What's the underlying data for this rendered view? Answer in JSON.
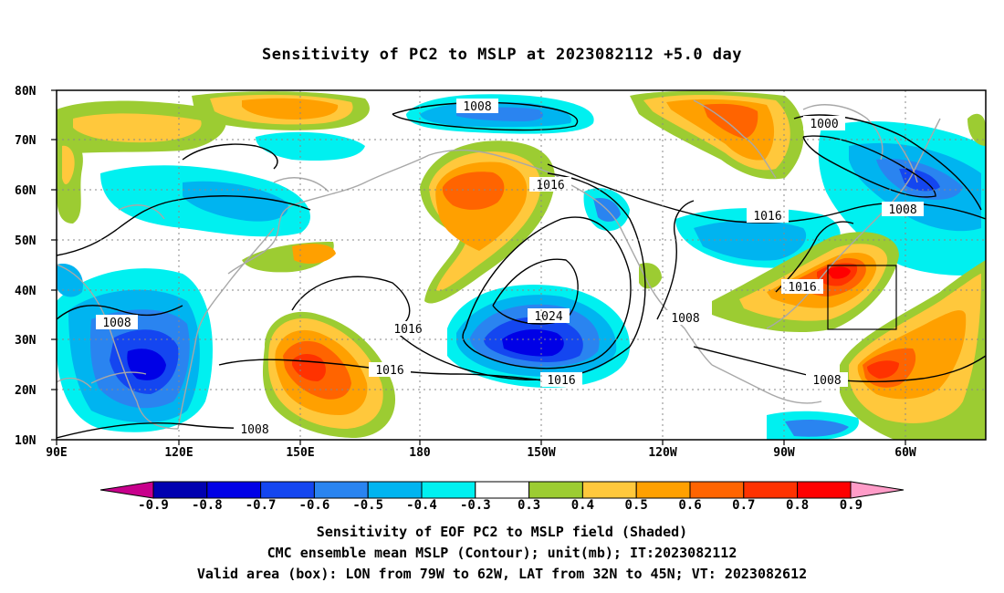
{
  "title": "Sensitivity of PC2 to MSLP at 2023082112 +5.0 day",
  "lat_labels": [
    "80N",
    "70N",
    "60N",
    "50N",
    "40N",
    "30N",
    "20N",
    "10N"
  ],
  "lon_labels": [
    "90E",
    "120E",
    "150E",
    "180",
    "150W",
    "120W",
    "90W",
    "60W"
  ],
  "contour_labels": [
    {
      "text": "1008",
      "where": "north-pacific-low"
    },
    {
      "text": "1000",
      "where": "hudson-bay-low"
    },
    {
      "text": "1016",
      "where": "bering-ridge"
    },
    {
      "text": "1016",
      "where": "canada"
    },
    {
      "text": "1008",
      "where": "north-atlantic"
    },
    {
      "text": "1016",
      "where": "mid-atlantic-coast"
    },
    {
      "text": "1024",
      "where": "pacific-high-center"
    },
    {
      "text": "1016",
      "where": "west-pacific"
    },
    {
      "text": "1016",
      "where": "central-pacific"
    },
    {
      "text": "1016",
      "where": "pacific-high-south"
    },
    {
      "text": "1008",
      "where": "california"
    },
    {
      "text": "1008",
      "where": "china-coast"
    },
    {
      "text": "1008",
      "where": "south-china-sea"
    },
    {
      "text": "1008",
      "where": "caribbean"
    }
  ],
  "colorbar": {
    "labels": [
      "-0.9",
      "-0.8",
      "-0.7",
      "-0.6",
      "-0.5",
      "-0.4",
      "-0.3",
      "0.3",
      "0.4",
      "0.5",
      "0.6",
      "0.7",
      "0.8",
      "0.9"
    ],
    "colors": [
      "#0000b0",
      "#0000e6",
      "#1446f0",
      "#2a84f0",
      "#00b4f0",
      "#00f0f0",
      "#ffffff",
      "#9ccc32",
      "#ffc83c",
      "#ffa000",
      "#ff6400",
      "#ff3200",
      "#ff0000"
    ],
    "under_color": "#c8008c",
    "over_color": "#ff9cc8"
  },
  "valid_box": {
    "lon_west": "79W",
    "lon_east": "62W",
    "lat_south": "32N",
    "lat_north": "45N"
  },
  "footer": {
    "line1": "Sensitivity of EOF PC2 to MSLP field (Shaded)",
    "line2": "CMC ensemble mean MSLP (Contour); unit(mb); IT:2023082112",
    "line3": "Valid area (box): LON from 79W to 62W, LAT from 32N to 45N; VT: 2023082612"
  }
}
